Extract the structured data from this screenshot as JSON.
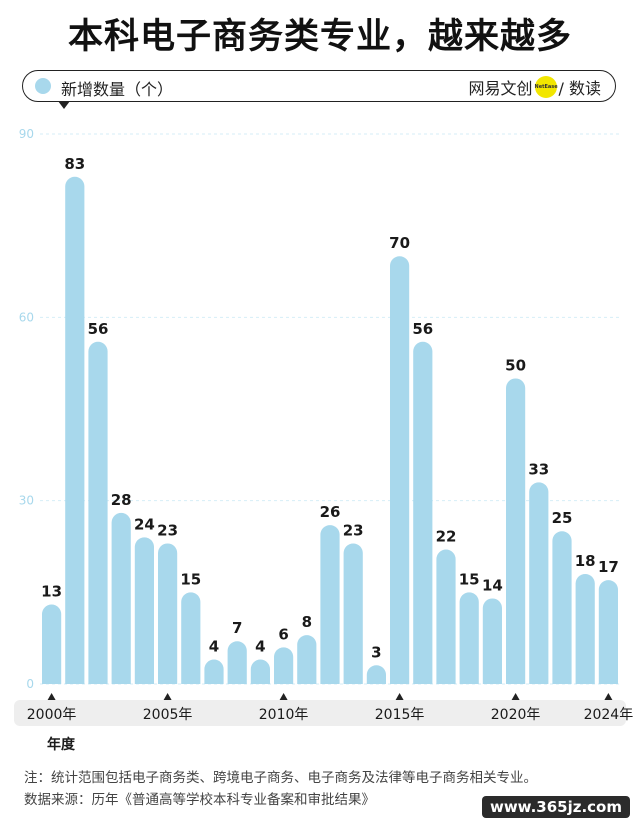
{
  "title": "本科电子商务类专业，越来越多",
  "legend": {
    "series_name": "新增数量（个）"
  },
  "brand": {
    "name": "网易文创",
    "badge": "NetEase",
    "suffix": "/ 数读"
  },
  "x_axis_title": "年度",
  "footnote": "注：统计范围包括电子商务类、跨境电子商务、电子商务及法律等电子商务相关专业。",
  "source": "数据来源：历年《普通高等学校本科专业备案和审批结果》",
  "watermark": "www.365jz.com",
  "colors": {
    "bar": "#a8d8ec",
    "grid": "#d6eef7",
    "axis_text": "#a8d8ec"
  },
  "chart_data": {
    "type": "bar",
    "categories": [
      "2000",
      "2001",
      "2002",
      "2003",
      "2004",
      "2005",
      "2006",
      "2007",
      "2008",
      "2009",
      "2010",
      "2011",
      "2012",
      "2013",
      "2014",
      "2015",
      "2016",
      "2017",
      "2018",
      "2019",
      "2020",
      "2021",
      "2022",
      "2023",
      "2024"
    ],
    "series": [
      {
        "name": "新增数量（个）",
        "values": [
          13,
          83,
          56,
          28,
          24,
          23,
          15,
          4,
          7,
          4,
          6,
          8,
          26,
          23,
          3,
          70,
          56,
          22,
          15,
          14,
          50,
          33,
          25,
          18,
          17
        ]
      }
    ],
    "ylim": [
      0,
      90
    ],
    "yticks": [
      0,
      30,
      60,
      90
    ],
    "xtick_labels": [
      {
        "category": "2000",
        "label": "2000年"
      },
      {
        "category": "2005",
        "label": "2005年"
      },
      {
        "category": "2010",
        "label": "2010年"
      },
      {
        "category": "2015",
        "label": "2015年"
      },
      {
        "category": "2020",
        "label": "2020年"
      },
      {
        "category": "2024",
        "label": "2024年"
      }
    ],
    "xlabel": "年度",
    "ylabel": "",
    "grid": true
  }
}
